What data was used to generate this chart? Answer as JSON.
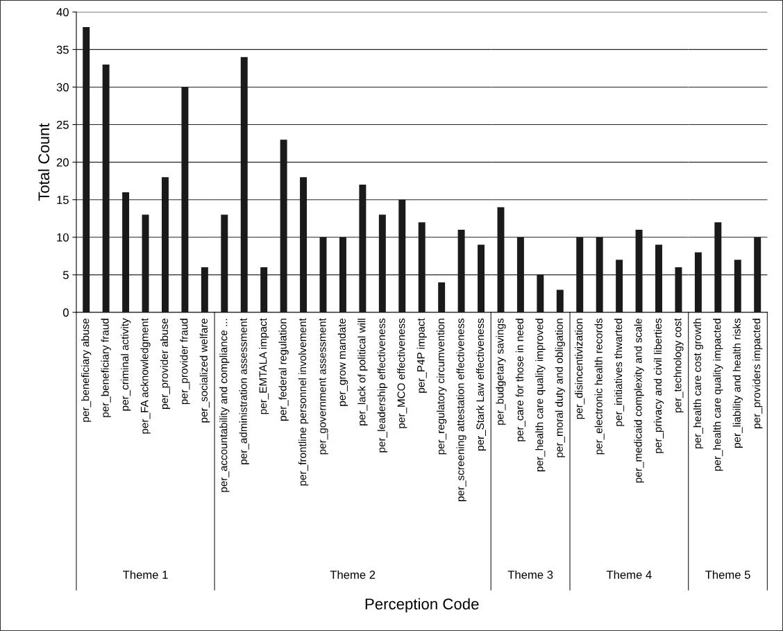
{
  "chart_data": [
    {
      "type": "bar",
      "xlabel": "Theme 1",
      "ylabel": "Total Count",
      "annotations": [
        "Perception Code"
      ],
      "color": "#1a1a1a",
      "ylim": [
        0,
        40
      ],
      "yticks": [
        0,
        5,
        10,
        15,
        20,
        25,
        30,
        35,
        40
      ],
      "grid": "y",
      "categories": [
        "per_beneficiary abuse",
        "per_beneficiary fraud",
        "per_criminal activity",
        "per_FA acknowledgment",
        "per_provider abuse",
        "per_provider fraud",
        "per_socialized welfare"
      ],
      "values": [
        38,
        33,
        16,
        13,
        18,
        30,
        6
      ]
    },
    {
      "type": "bar",
      "xlabel": "Theme 2",
      "color": "#1a1a1a",
      "ylim": [
        0,
        40
      ],
      "yticks": [
        0,
        5,
        10,
        15,
        20,
        25,
        30,
        35,
        40
      ],
      "grid": "y",
      "tick_labels": "x",
      "categories": [
        "per_accountability and compliance ...",
        "per_administration assessment",
        "per_EMTALA impact",
        "per_federal regulation",
        "per_frontline personnel involvement",
        "per_government assessment",
        "per_grow mandate",
        "per_lack of political will",
        "per_leadership effectiveness",
        "per_MCO effectiveness",
        "per_P4P impact",
        "per_regulatory circumvention",
        "per_screening attestation effectiveness",
        "per_Stark Law effectiveness"
      ],
      "values": [
        13,
        34,
        6,
        23,
        18,
        10,
        10,
        17,
        13,
        15,
        12,
        4,
        11,
        9
      ]
    },
    {
      "type": "bar",
      "xlabel": "Theme 3",
      "color": "#1a1a1a",
      "ylim": [
        0,
        40
      ],
      "yticks": [
        0,
        5,
        10,
        15,
        20,
        25,
        30,
        35,
        40
      ],
      "grid": "y",
      "tick_labels": "x",
      "categories": [
        "per_budgetary savings",
        "per_care for those in need",
        "per_health care quality improved",
        "per_moral duty and obligation"
      ],
      "values": [
        14,
        10,
        5,
        3
      ]
    },
    {
      "type": "bar",
      "xlabel": "Theme 4",
      "color": "#1a1a1a",
      "ylim": [
        0,
        40
      ],
      "yticks": [
        0,
        5,
        10,
        15,
        20,
        25,
        30,
        35,
        40
      ],
      "grid": "y",
      "tick_labels": "x",
      "categories": [
        "per_disincentivization",
        "per_electronic health records",
        "per_initiatives thwarted",
        "per_medicaid complexity and scale",
        "per_privacy and civil liberties",
        "per_technology cost"
      ],
      "values": [
        10,
        10,
        7,
        11,
        9,
        6
      ]
    },
    {
      "type": "bar",
      "xlabel": "Theme 5",
      "color": "#1a1a1a",
      "ylim": [
        0,
        40
      ],
      "yticks": [
        0,
        5,
        10,
        15,
        20,
        25,
        30,
        35,
        40
      ],
      "grid": "y",
      "tick_labels": "x",
      "categories": [
        "per_health care cost growth",
        "per_health care quality impacted",
        "per_liability and health risks",
        "per_providers impacted"
      ],
      "values": [
        8,
        12,
        7,
        10
      ]
    }
  ]
}
